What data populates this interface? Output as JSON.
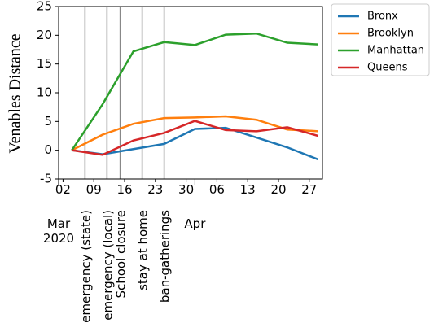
{
  "chart_data": {
    "type": "line",
    "ylabel": "Venables Distance",
    "x": [
      "2020-03-04",
      "2020-03-11",
      "2020-03-18",
      "2020-03-25",
      "2020-04-01",
      "2020-04-08",
      "2020-04-15",
      "2020-04-22",
      "2020-04-29"
    ],
    "series": [
      {
        "name": "Bronx",
        "color": "#1f77b4",
        "values": [
          0,
          -0.7,
          0.2,
          1.1,
          3.7,
          3.9,
          2.2,
          0.5,
          -1.6
        ]
      },
      {
        "name": "Brooklyn",
        "color": "#ff7f0e",
        "values": [
          0,
          2.7,
          4.6,
          5.6,
          5.7,
          5.9,
          5.3,
          3.6,
          3.3
        ]
      },
      {
        "name": "Manhattan",
        "color": "#2ca02c",
        "values": [
          0,
          8,
          17.2,
          18.8,
          18.3,
          20.1,
          20.3,
          18.7,
          18.4
        ]
      },
      {
        "name": "Queens",
        "color": "#d62728",
        "values": [
          0,
          -0.8,
          1.7,
          3.0,
          5.1,
          3.5,
          3.3,
          4.0,
          2.5
        ]
      }
    ],
    "events": [
      {
        "x": "2020-03-07",
        "label": "emergency (state)"
      },
      {
        "x": "2020-03-12",
        "label": "emergency (local)"
      },
      {
        "x": "2020-03-15",
        "label": "School closure"
      },
      {
        "x": "2020-03-20",
        "label": "stay at home"
      },
      {
        "x": "2020-03-25",
        "label": "ban-gatherings"
      }
    ],
    "xlim": [
      "2020-03-01",
      "2020-04-30"
    ],
    "xticks": [
      {
        "value": "2020-03-02",
        "label": "02"
      },
      {
        "value": "2020-03-09",
        "label": "09"
      },
      {
        "value": "2020-03-16",
        "label": "16"
      },
      {
        "value": "2020-03-23",
        "label": "23"
      },
      {
        "value": "2020-03-30",
        "label": "30"
      },
      {
        "value": "2020-04-06",
        "label": "06"
      },
      {
        "value": "2020-04-13",
        "label": "13"
      },
      {
        "value": "2020-04-20",
        "label": "20"
      },
      {
        "value": "2020-04-27",
        "label": "27"
      }
    ],
    "xticks_major": [
      {
        "value": "2020-03-01",
        "label": "Mar\n2020"
      },
      {
        "value": "2020-04-01",
        "label": "Apr"
      }
    ],
    "ylim": [
      -5,
      25
    ],
    "yticks": [
      -5,
      0,
      5,
      10,
      15,
      20,
      25
    ],
    "legend": "outside upper right"
  }
}
